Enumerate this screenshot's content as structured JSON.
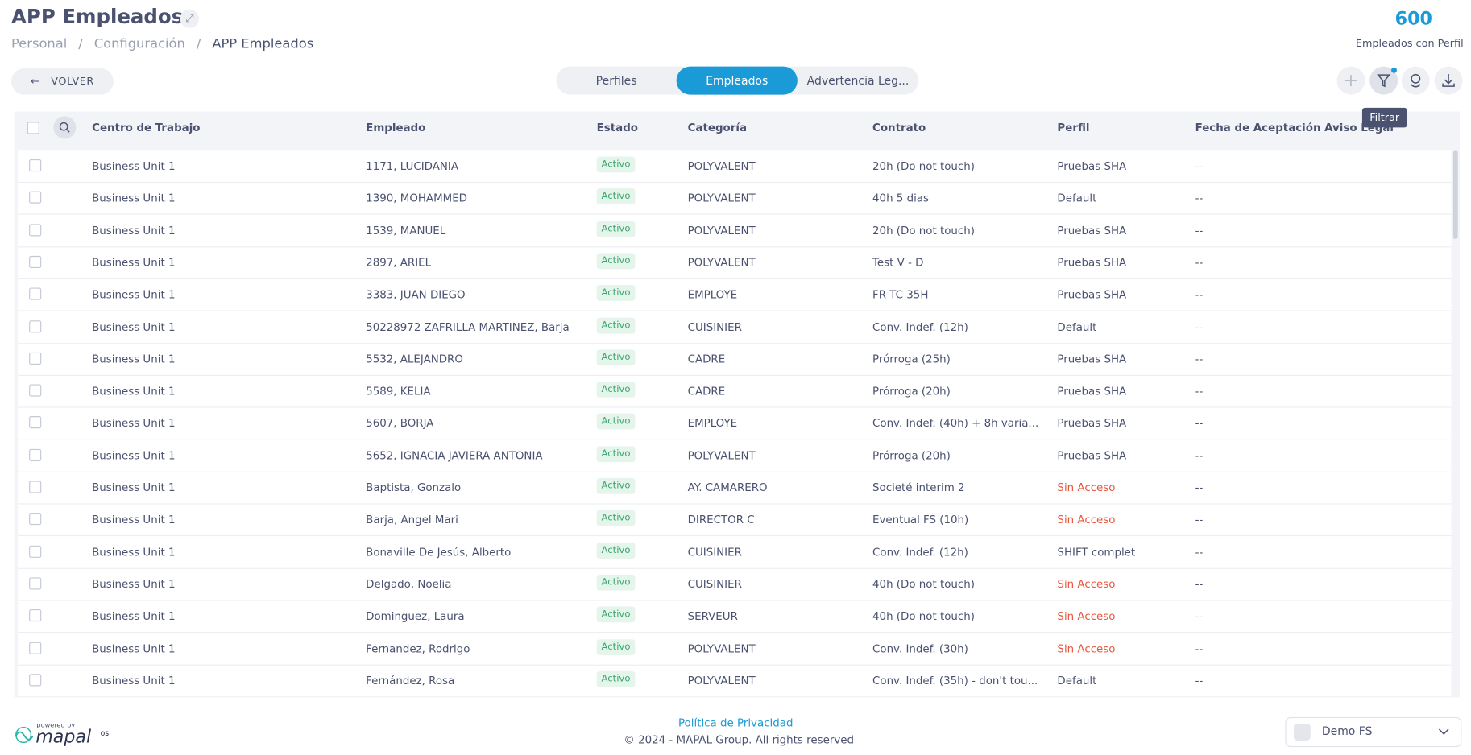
{
  "header": {
    "title": "APP Empleados",
    "breadcrumb": [
      "Personal",
      "Configuración",
      "APP Empleados"
    ],
    "stat_value": "600",
    "stat_label": "Empleados con Perfil"
  },
  "toolbar": {
    "back": "VOLVER",
    "tabs": [
      "Perfiles",
      "Empleados",
      "Advertencia Leg..."
    ],
    "active_tab": 1,
    "tooltip": "Filtrar"
  },
  "table": {
    "columns": [
      "Centro de Trabajo",
      "Empleado",
      "Estado",
      "Categoría",
      "Contrato",
      "Perfil",
      "Fecha de Aceptación Aviso Legal"
    ],
    "rows": [
      [
        "Business Unit 1",
        "1171, LUCIDANIA",
        "Activo",
        "POLYVALENT",
        "20h (Do not touch)",
        "Pruebas SHA",
        "--"
      ],
      [
        "Business Unit 1",
        "1390, MOHAMMED",
        "Activo",
        "POLYVALENT",
        "40h 5 dias",
        "Default",
        "--"
      ],
      [
        "Business Unit 1",
        "1539, MANUEL",
        "Activo",
        "POLYVALENT",
        "20h (Do not touch)",
        "Pruebas SHA",
        "--"
      ],
      [
        "Business Unit 1",
        "2897, ARIEL",
        "Activo",
        "POLYVALENT",
        "Test V - D",
        "Pruebas SHA",
        "--"
      ],
      [
        "Business Unit 1",
        "3383, JUAN DIEGO",
        "Activo",
        "EMPLOYE",
        "FR TC 35H",
        "Pruebas SHA",
        "--"
      ],
      [
        "Business Unit 1",
        "50228972 ZAFRILLA MARTINEZ, Barja",
        "Activo",
        "CUISINIER",
        "Conv. Indef. (12h)",
        "Default",
        "--"
      ],
      [
        "Business Unit 1",
        "5532, ALEJANDRO",
        "Activo",
        "CADRE",
        "Prórroga (25h)",
        "Pruebas SHA",
        "--"
      ],
      [
        "Business Unit 1",
        "5589, KELIA",
        "Activo",
        "CADRE",
        "Prórroga (20h)",
        "Pruebas SHA",
        "--"
      ],
      [
        "Business Unit 1",
        "5607, BORJA",
        "Activo",
        "EMPLOYE",
        "Conv. Indef. (40h) + 8h varia...",
        "Pruebas SHA",
        "--"
      ],
      [
        "Business Unit 1",
        "5652, IGNACIA JAVIERA ANTONIA",
        "Activo",
        "POLYVALENT",
        "Prórroga (20h)",
        "Pruebas SHA",
        "--"
      ],
      [
        "Business Unit 1",
        "Baptista, Gonzalo",
        "Activo",
        "AY. CAMARERO",
        "Societé interim 2",
        {
          "text": "Sin Acceso",
          "color": "#e8573f"
        },
        "--"
      ],
      [
        "Business Unit 1",
        "Barja, Angel Mari",
        "Activo",
        "DIRECTOR C",
        "Eventual FS (10h)",
        {
          "text": "Sin Acceso",
          "color": "#e8573f"
        },
        "--"
      ],
      [
        "Business Unit 1",
        "Bonaville De Jesús, Alberto",
        "Activo",
        "CUISINIER",
        "Conv. Indef. (12h)",
        "SHIFT complet",
        "--"
      ],
      [
        "Business Unit 1",
        "Delgado, Noelia",
        "Activo",
        "CUISINIER",
        "40h (Do not touch)",
        {
          "text": "Sin Acceso",
          "color": "#e8573f"
        },
        "--"
      ],
      [
        "Business Unit 1",
        "Dominguez, Laura",
        "Activo",
        "SERVEUR",
        "40h (Do not touch)",
        {
          "text": "Sin Acceso",
          "color": "#e8573f"
        },
        "--"
      ],
      [
        "Business Unit 1",
        "Fernandez, Rodrigo",
        "Activo",
        "POLYVALENT",
        "Conv. Indef. (30h)",
        {
          "text": "Sin Acceso",
          "color": "#e8573f"
        },
        "--"
      ],
      [
        "Business Unit 1",
        "Fernández, Rosa",
        "Activo",
        "POLYVALENT",
        "Conv. Indef. (35h) - don't tou...",
        "Default",
        "--"
      ]
    ]
  },
  "footer": {
    "privacy": "Política de Privacidad",
    "copyright": "© 2024 - MAPAL Group. All rights reserved",
    "company": "Demo FS",
    "powered_by": "powered by",
    "logo": "mapal",
    "logo_suffix": "os"
  }
}
